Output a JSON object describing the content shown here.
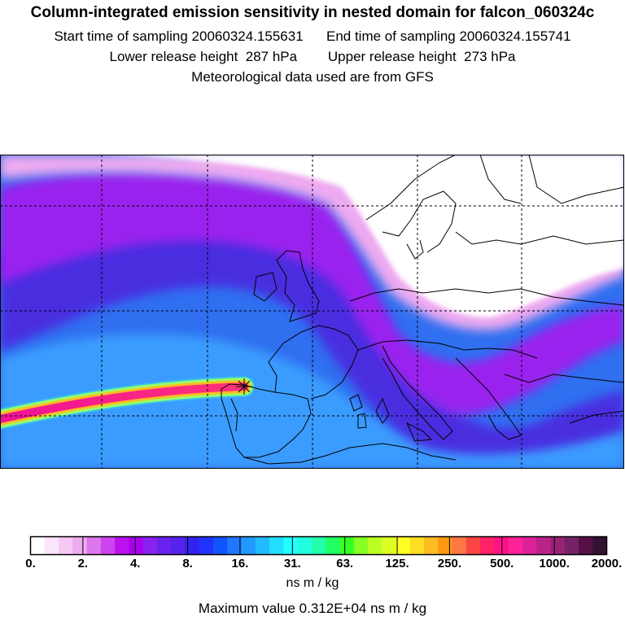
{
  "header": {
    "title": "Column-integrated emission sensitivity in nested domain for falcon_060324c",
    "line1": "Start time of sampling 20060324.155631      End time of sampling 20060324.155741",
    "line2": "Lower release height  287 hPa        Upper release height  273 hPa",
    "line3": "Meteorological data used are from GFS"
  },
  "legend": {
    "tick_labels": [
      "0.",
      "2.",
      "4.",
      "8.",
      "16.",
      "31.",
      "63.",
      "125.",
      "250.",
      "500.",
      "1000.",
      "2000."
    ],
    "units": "ns m / kg",
    "max_value": "Maximum value  0.312E+04 ns m / kg",
    "colors": [
      "#ffffff",
      "#fbe6fb",
      "#f5c8f5",
      "#eeaaf0",
      "#dd77ee",
      "#cc44ee",
      "#bb11ee",
      "#aa00ee",
      "#8822ee",
      "#6a22ee",
      "#5522ee",
      "#3322ee",
      "#2233ff",
      "#1155ff",
      "#2277ff",
      "#2299ff",
      "#22bbff",
      "#22dfff",
      "#22ffff",
      "#22ffdd",
      "#22ffaa",
      "#22ff66",
      "#33ff22",
      "#88ff22",
      "#bbff22",
      "#ddff22",
      "#ffff22",
      "#ffdd22",
      "#ffbb22",
      "#ff9911",
      "#ff7744",
      "#ff4444",
      "#ff2266",
      "#ff1188",
      "#ff2299",
      "#dd2299",
      "#bb2288",
      "#992277",
      "#772266",
      "#551144",
      "#331133"
    ]
  }
}
